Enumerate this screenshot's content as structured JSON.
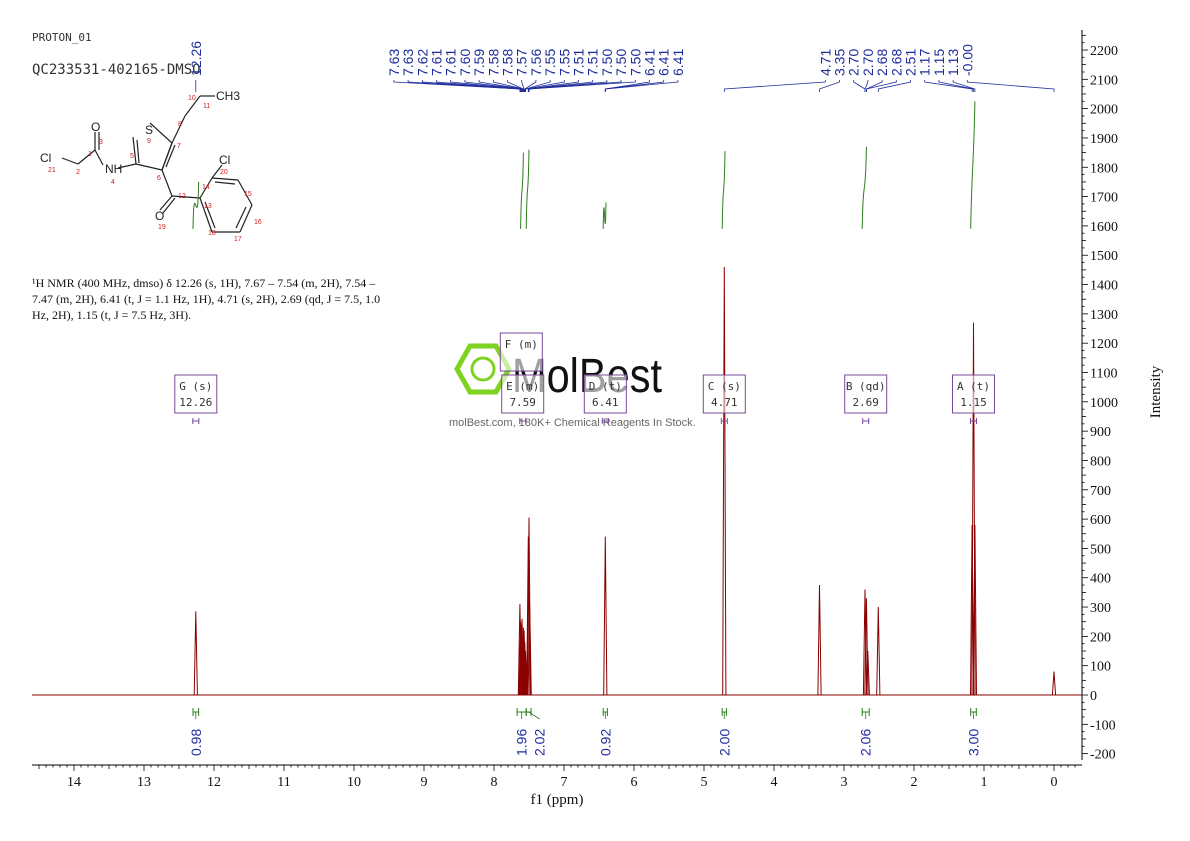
{
  "header": {
    "experiment": "PROTON_01",
    "sample": "QC233531-402165-DMSO"
  },
  "summary_lines": [
    "¹H NMR (400 MHz, dmso) δ 12.26 (s, 1H), 7.67 – 7.54 (m, 2H), 7.54 –",
    "7.47 (m, 2H), 6.41 (t, J = 1.1 Hz, 1H), 4.71 (s, 2H), 2.69 (qd, J = 7.5, 1.0",
    "Hz, 2H), 1.15 (t, J = 7.5 Hz, 3H)."
  ],
  "watermark": {
    "brand": "MolBest",
    "tagline": "molBest.com, 180K+ Chemical Reagents In Stock."
  },
  "structure": {
    "atom_labels": [
      "Cl",
      "O",
      "S",
      "NH",
      "CH3",
      "Cl",
      "O"
    ],
    "atom_numbers": [
      "21",
      "2",
      "3",
      "1",
      "4",
      "5",
      "9",
      "8",
      "10",
      "11",
      "7",
      "6",
      "12",
      "19",
      "13",
      "14",
      "20",
      "15",
      "16",
      "17",
      "18"
    ]
  },
  "colors": {
    "spectrum": "#8b0000",
    "peak_labels": "#1f2d9c",
    "integrals": "#2e7d1e",
    "multiplet_box": "#7a4a9a",
    "structure_numbers": "#cc2222",
    "watermark_green": "#7ed321"
  },
  "chart_data": {
    "type": "line",
    "xlabel": "f1 (ppm)",
    "ylabel": "Intensity",
    "xlim": [
      14.6,
      -0.4
    ],
    "ylim": [
      -200,
      2250
    ],
    "x_ticks": [
      14,
      13,
      12,
      11,
      10,
      9,
      8,
      7,
      6,
      5,
      4,
      3,
      2,
      1,
      0
    ],
    "y_ticks": [
      -200,
      -100,
      0,
      100,
      200,
      300,
      400,
      500,
      600,
      700,
      800,
      900,
      1000,
      1100,
      1200,
      1300,
      1400,
      1500,
      1600,
      1700,
      1800,
      1900,
      2000,
      2100,
      2200
    ],
    "peaks": [
      {
        "x": 12.26,
        "y": 285
      },
      {
        "x": 7.63,
        "y": 310
      },
      {
        "x": 7.62,
        "y": 250
      },
      {
        "x": 7.61,
        "y": 240
      },
      {
        "x": 7.6,
        "y": 260
      },
      {
        "x": 7.59,
        "y": 200
      },
      {
        "x": 7.58,
        "y": 230
      },
      {
        "x": 7.57,
        "y": 220
      },
      {
        "x": 7.56,
        "y": 180
      },
      {
        "x": 7.55,
        "y": 150
      },
      {
        "x": 7.51,
        "y": 540
      },
      {
        "x": 7.5,
        "y": 605
      },
      {
        "x": 7.49,
        "y": 300
      },
      {
        "x": 6.41,
        "y": 540
      },
      {
        "x": 4.71,
        "y": 1460
      },
      {
        "x": 3.35,
        "y": 375
      },
      {
        "x": 2.7,
        "y": 360
      },
      {
        "x": 2.68,
        "y": 330
      },
      {
        "x": 2.66,
        "y": 150
      },
      {
        "x": 2.51,
        "y": 300
      },
      {
        "x": 1.17,
        "y": 580
      },
      {
        "x": 1.15,
        "y": 1270
      },
      {
        "x": 1.13,
        "y": 580
      },
      {
        "x": 0.0,
        "y": 80
      }
    ],
    "peak_labels": [
      {
        "text": "12.26",
        "x": 12.26
      },
      {
        "text": "7.63",
        "x": 7.63
      },
      {
        "text": "7.63",
        "x": 7.63
      },
      {
        "text": "7.62",
        "x": 7.62
      },
      {
        "text": "7.61",
        "x": 7.61
      },
      {
        "text": "7.61",
        "x": 7.61
      },
      {
        "text": "7.60",
        "x": 7.6
      },
      {
        "text": "7.59",
        "x": 7.59
      },
      {
        "text": "7.58",
        "x": 7.58
      },
      {
        "text": "7.58",
        "x": 7.58
      },
      {
        "text": "7.57",
        "x": 7.57
      },
      {
        "text": "7.56",
        "x": 7.56
      },
      {
        "text": "7.55",
        "x": 7.55
      },
      {
        "text": "7.55",
        "x": 7.55
      },
      {
        "text": "7.51",
        "x": 7.51
      },
      {
        "text": "7.51",
        "x": 7.51
      },
      {
        "text": "7.50",
        "x": 7.5
      },
      {
        "text": "7.50",
        "x": 7.5
      },
      {
        "text": "7.50",
        "x": 7.5
      },
      {
        "text": "6.41",
        "x": 6.41
      },
      {
        "text": "6.41",
        "x": 6.41
      },
      {
        "text": "6.41",
        "x": 6.41
      },
      {
        "text": "4.71",
        "x": 4.71
      },
      {
        "text": "3.35",
        "x": 3.35
      },
      {
        "text": "2.70",
        "x": 2.7
      },
      {
        "text": "2.70",
        "x": 2.7
      },
      {
        "text": "2.68",
        "x": 2.68
      },
      {
        "text": "2.68",
        "x": 2.68
      },
      {
        "text": "2.51",
        "x": 2.51
      },
      {
        "text": "1.17",
        "x": 1.17
      },
      {
        "text": "1.15",
        "x": 1.15
      },
      {
        "text": "1.13",
        "x": 1.13
      },
      {
        "text": "-0.00",
        "x": 0.0
      }
    ],
    "integrals": [
      {
        "label": "0.98",
        "from": 12.3,
        "to": 12.22
      },
      {
        "label": "1.96",
        "from": 7.67,
        "to": 7.54
      },
      {
        "label": "2.02",
        "from": 7.54,
        "to": 7.47
      },
      {
        "label": "0.92",
        "from": 6.44,
        "to": 6.38
      },
      {
        "label": "2.00",
        "from": 4.74,
        "to": 4.68
      },
      {
        "label": "2.06",
        "from": 2.74,
        "to": 2.64
      },
      {
        "label": "3.00",
        "from": 1.19,
        "to": 1.11
      }
    ],
    "multiplets": [
      {
        "letter": "G",
        "type": "s",
        "shift": "12.26",
        "x": 12.26,
        "row": 1
      },
      {
        "letter": "F",
        "type": "m",
        "shift": "",
        "x": 7.61,
        "row": 0
      },
      {
        "letter": "E",
        "type": "m",
        "shift": "7.59",
        "x": 7.59,
        "row": 1
      },
      {
        "letter": "D",
        "type": "t",
        "shift": "6.41",
        "x": 6.41,
        "row": 1
      },
      {
        "letter": "C",
        "type": "s",
        "shift": "4.71",
        "x": 4.71,
        "row": 1
      },
      {
        "letter": "B",
        "type": "qd",
        "shift": "2.69",
        "x": 2.69,
        "row": 1
      },
      {
        "letter": "A",
        "type": "t",
        "shift": "1.15",
        "x": 1.15,
        "row": 1
      }
    ]
  }
}
